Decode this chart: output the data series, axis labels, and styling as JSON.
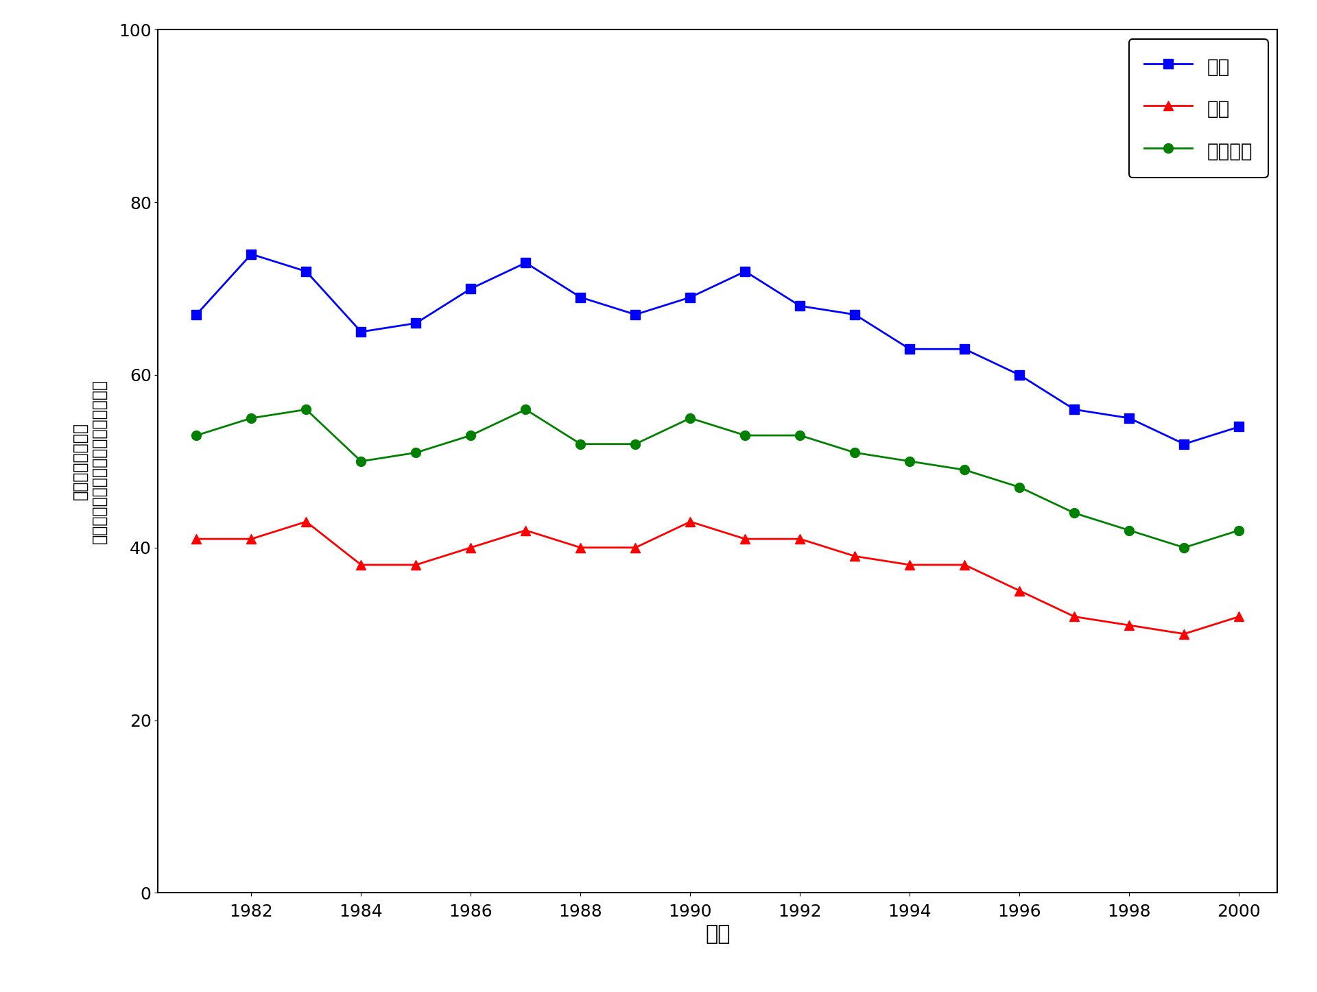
{
  "years": [
    1981,
    1982,
    1983,
    1984,
    1985,
    1986,
    1987,
    1988,
    1989,
    1990,
    1991,
    1992,
    1993,
    1994,
    1995,
    1996,
    1997,
    1998,
    1999,
    2000
  ],
  "male": [
    67,
    74,
    72,
    65,
    66,
    70,
    73,
    69,
    67,
    69,
    72,
    68,
    67,
    63,
    63,
    60,
    56,
    55,
    52,
    54
  ],
  "female": [
    41,
    41,
    43,
    38,
    38,
    40,
    42,
    40,
    40,
    43,
    41,
    41,
    39,
    38,
    38,
    35,
    32,
    31,
    30,
    32
  ],
  "all": [
    53,
    55,
    56,
    50,
    51,
    53,
    56,
    52,
    52,
    55,
    53,
    53,
    51,
    50,
    49,
    47,
    44,
    42,
    40,
    42
  ],
  "male_color": "#0000FF",
  "female_color": "#FF0000",
  "all_color": "#008000",
  "male_label": "男性",
  "female_label": "女性",
  "all_label": "所有性別",
  "xlabel": "年份",
  "ylabel_line1": "年齡標準化死亡率",
  "ylabel_line2": "（按每十萬人口計算的登記死亡數目）",
  "ylim": [
    0,
    100
  ],
  "yticks": [
    0,
    20,
    40,
    60,
    80,
    100
  ],
  "xticks": [
    1982,
    1984,
    1986,
    1988,
    1990,
    1992,
    1994,
    1996,
    1998,
    2000
  ],
  "xlim": [
    1980.3,
    2000.7
  ],
  "linewidth": 2.0,
  "markersize": 10,
  "xlabel_fontsize": 22,
  "ylabel_fontsize": 17,
  "tick_fontsize": 18,
  "legend_fontsize": 20
}
